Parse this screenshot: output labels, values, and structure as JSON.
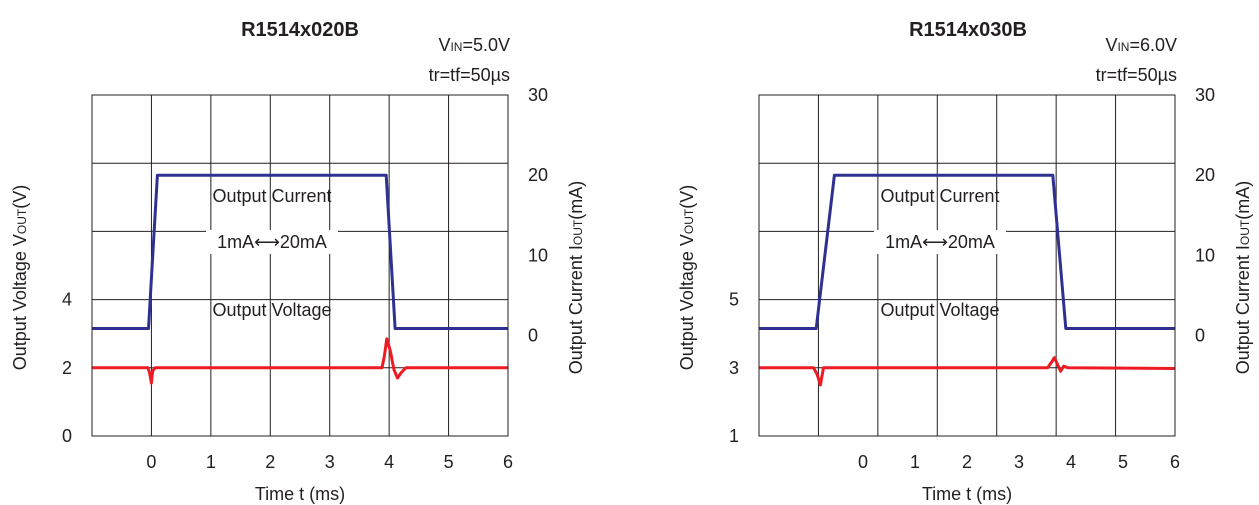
{
  "colors": {
    "current": "#2e3192",
    "voltage": "#ed1c24",
    "grid": "#231f20",
    "text": "#231f20",
    "background": "#ffffff"
  },
  "chart_data": [
    {
      "type": "line",
      "title": "R1514x020B",
      "conditions": {
        "vin_prefix": "V",
        "vin_sub": "IN",
        "vin_value": "=5.0V",
        "tr": "tr=tf=50µs"
      },
      "xlabel": "Time t (ms)",
      "ylabel_left": {
        "prefix": "Output Voltage V",
        "sub": "OUT",
        "suffix": "(V)"
      },
      "ylabel_right": {
        "prefix": "Output Current I",
        "sub": "OUT",
        "suffix": "(mA)"
      },
      "xlim": [
        -1,
        6
      ],
      "x_ticks": [
        "0",
        "1",
        "2",
        "3",
        "4",
        "5",
        "6"
      ],
      "x_tick_values": [
        0,
        1,
        2,
        3,
        4,
        5,
        6
      ],
      "ylim_left": [
        0,
        10
      ],
      "y_ticks_left": [
        "0",
        "2",
        "4"
      ],
      "y_tick_values_left": [
        0,
        2,
        4
      ],
      "ylim_right": [
        -12.5,
        30
      ],
      "y_ticks_right": [
        "0",
        "10",
        "20",
        "30"
      ],
      "y_tick_values_right": [
        0,
        10,
        20,
        30
      ],
      "grid": true,
      "annotations": {
        "current_label": "Output Current",
        "current_range": "1mA⟷20mA",
        "voltage_label": "Output Voltage"
      },
      "series": [
        {
          "axis": "right",
          "color": "#2e3192",
          "x": [
            -1,
            -0.05,
            0.1,
            3.95,
            4.1,
            6
          ],
          "y": [
            0.9,
            0.9,
            20,
            20,
            0.9,
            0.9
          ]
        },
        {
          "axis": "left",
          "color": "#ed1c24",
          "x": [
            -1,
            -0.06,
            -0.03,
            0.0,
            0.02,
            0.06,
            3.88,
            3.92,
            3.96,
            4.02,
            4.08,
            4.14,
            4.2,
            4.28,
            4.36,
            6
          ],
          "y": [
            2.0,
            2.0,
            1.85,
            1.55,
            1.9,
            2.0,
            2.0,
            2.35,
            2.85,
            2.5,
            1.95,
            1.7,
            1.85,
            2.0,
            2.0,
            2.0
          ]
        }
      ]
    },
    {
      "type": "line",
      "title": "R1514x030B",
      "conditions": {
        "vin_prefix": "V",
        "vin_sub": "IN",
        "vin_value": "=6.0V",
        "tr": "tr=tf=50µs"
      },
      "xlabel": "Time t (ms)",
      "ylabel_left": {
        "prefix": "Output Voltage V",
        "sub": "OUT",
        "suffix": "(V)"
      },
      "ylabel_right": {
        "prefix": "Output Current I",
        "sub": "OUT",
        "suffix": "(mA)"
      },
      "xlim": [
        -2,
        6
      ],
      "x_ticks": [
        "0",
        "1",
        "2",
        "3",
        "4",
        "5",
        "6"
      ],
      "x_tick_values": [
        0,
        1,
        2,
        3,
        4,
        5,
        6
      ],
      "ylim_left": [
        1,
        11
      ],
      "y_ticks_left": [
        "1",
        "3",
        "5"
      ],
      "y_tick_values_left": [
        1,
        3,
        5
      ],
      "ylim_right": [
        -12.5,
        30
      ],
      "y_ticks_right": [
        "0",
        "10",
        "20",
        "30"
      ],
      "y_tick_values_right": [
        0,
        10,
        20,
        30
      ],
      "grid": true,
      "annotations": {
        "current_label": "Output Current",
        "current_range": "1mA⟷20mA",
        "voltage_label": "Output Voltage"
      },
      "series": [
        {
          "axis": "right",
          "color": "#2e3192",
          "x": [
            -2,
            -0.9,
            -0.55,
            3.65,
            3.9,
            6
          ],
          "y": [
            0.9,
            0.9,
            20,
            20,
            0.9,
            0.9
          ]
        },
        {
          "axis": "left",
          "color": "#ed1c24",
          "x": [
            -2,
            -0.95,
            -0.88,
            -0.82,
            -0.76,
            3.55,
            3.62,
            3.68,
            3.74,
            3.8,
            3.86,
            3.94,
            6
          ],
          "y": [
            3.0,
            3.0,
            2.8,
            2.5,
            3.0,
            3.0,
            3.15,
            3.3,
            3.1,
            2.9,
            3.05,
            3.0,
            2.98
          ]
        }
      ]
    }
  ]
}
